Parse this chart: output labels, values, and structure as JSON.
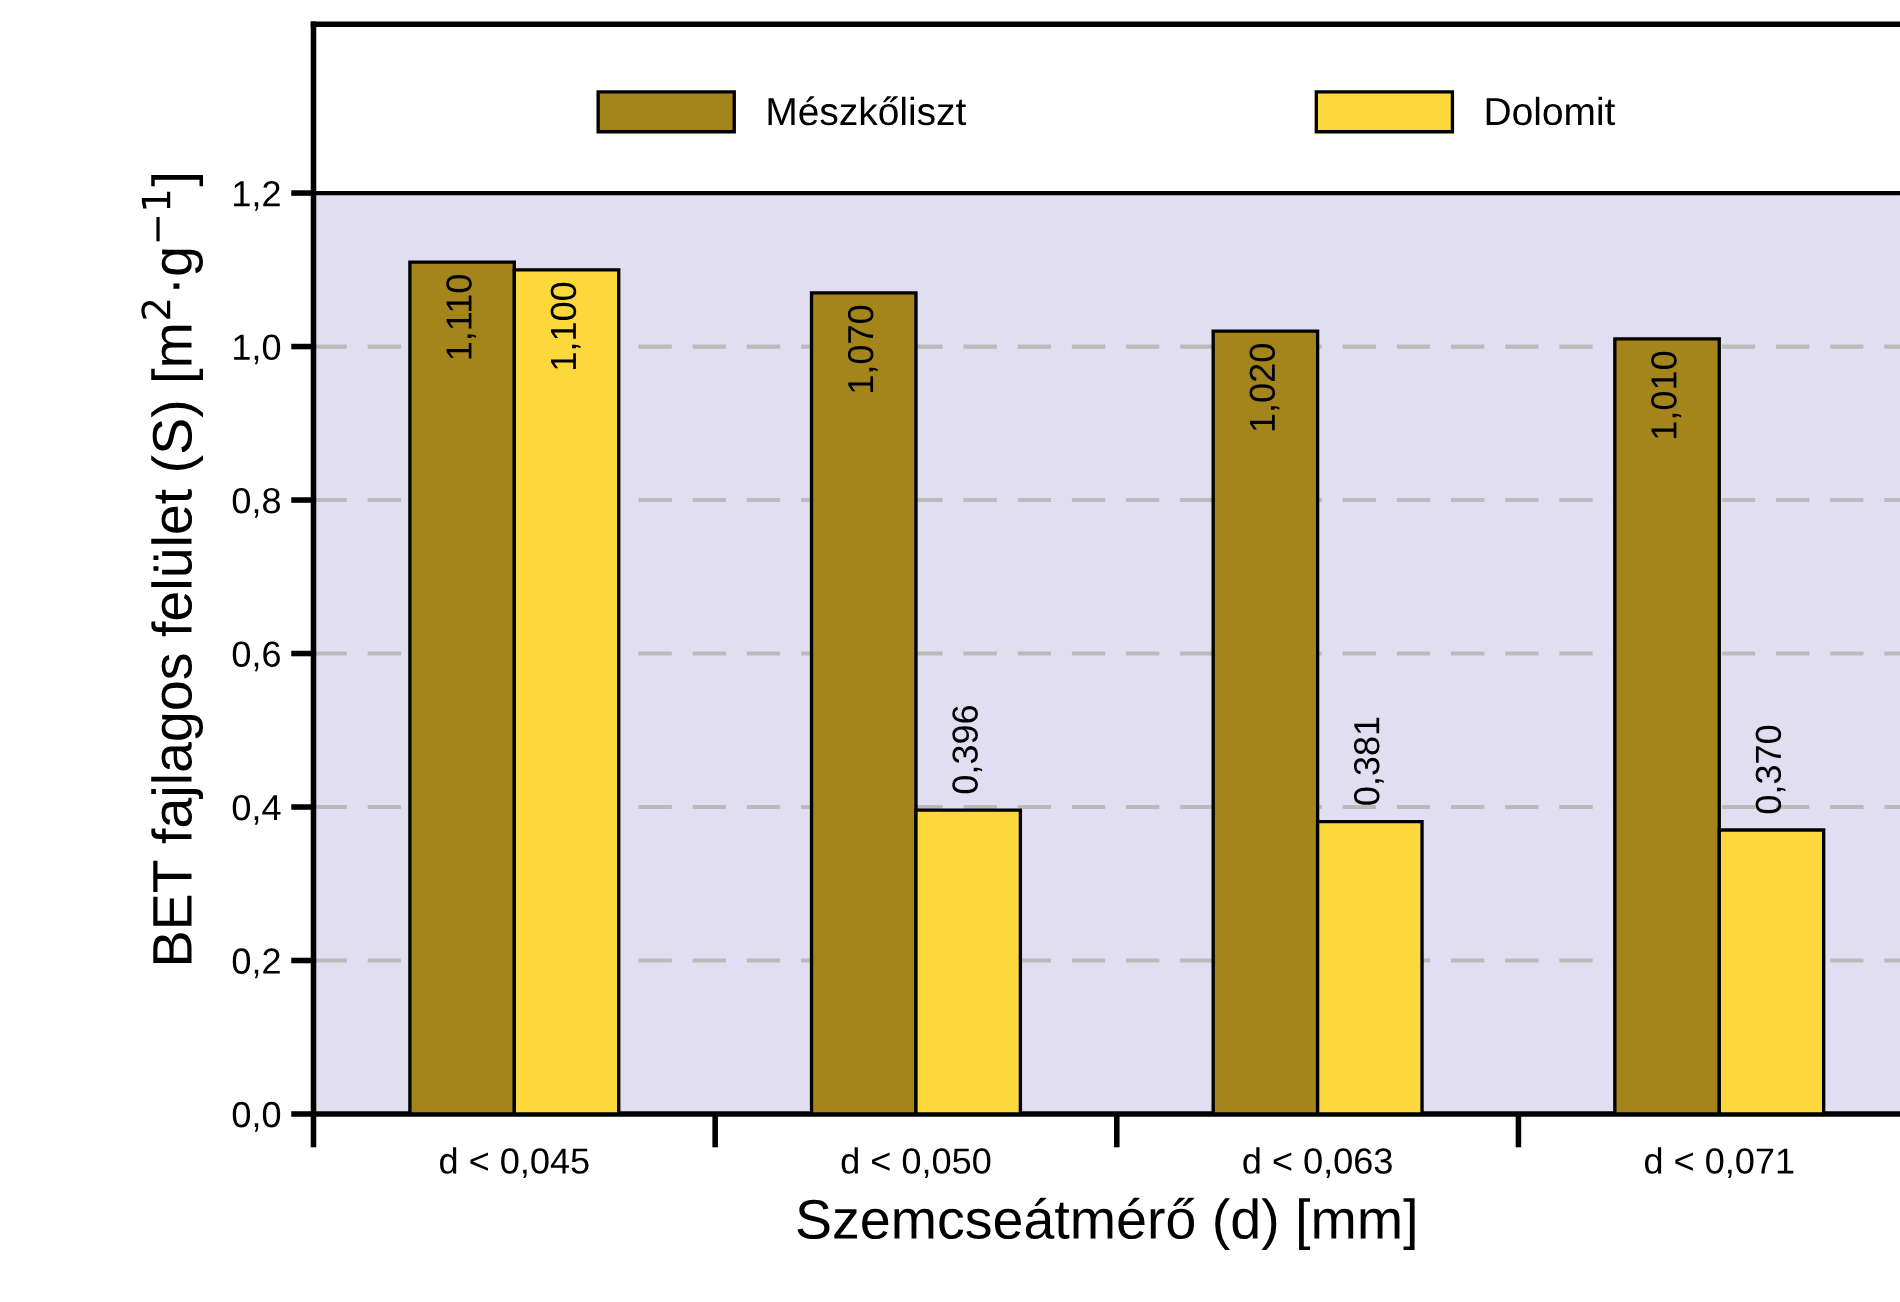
{
  "chart_data": {
    "type": "bar",
    "xlabel": "Szemcseátmérő (d) [mm]",
    "ylabel": "BET fajlagos felület (S) [m$^{2}$·g$^{−1}$]",
    "categories": [
      "d < 0,045",
      "d < 0,050",
      "d < 0,063",
      "d < 0,071"
    ],
    "series": [
      {
        "name": "Mészkőliszt",
        "color": "#a3851b",
        "values": [
          1.11,
          1.07,
          1.02,
          1.01
        ],
        "value_labels": [
          "1,110",
          "1,070",
          "1,020",
          "1,010"
        ]
      },
      {
        "name": "Dolomit",
        "color": "#fdd83d",
        "values": [
          1.1,
          0.396,
          0.381,
          0.37
        ],
        "value_labels": [
          "1,100",
          "0,396",
          "0,381",
          "0,370"
        ]
      }
    ],
    "ylim": [
      0,
      1.42
    ],
    "yticks": [
      {
        "value": 0,
        "label": "0,0"
      },
      {
        "value": 0.2,
        "label": "0,2"
      },
      {
        "value": 0.4,
        "label": "0,4"
      },
      {
        "value": 0.6,
        "label": "0,6"
      },
      {
        "value": 0.8,
        "label": "0,8"
      },
      {
        "value": 1.0,
        "label": "1,0"
      },
      {
        "value": 1.2,
        "label": "1,2"
      }
    ],
    "bands": [
      {
        "axis": "y",
        "from": 0,
        "to": 1.2,
        "color": "#e1def2"
      }
    ],
    "ref_lines": [
      {
        "axis": "y",
        "value": 1.2,
        "color": "#000000",
        "line_style": "solid"
      }
    ],
    "grid": "y",
    "legend": "top"
  }
}
